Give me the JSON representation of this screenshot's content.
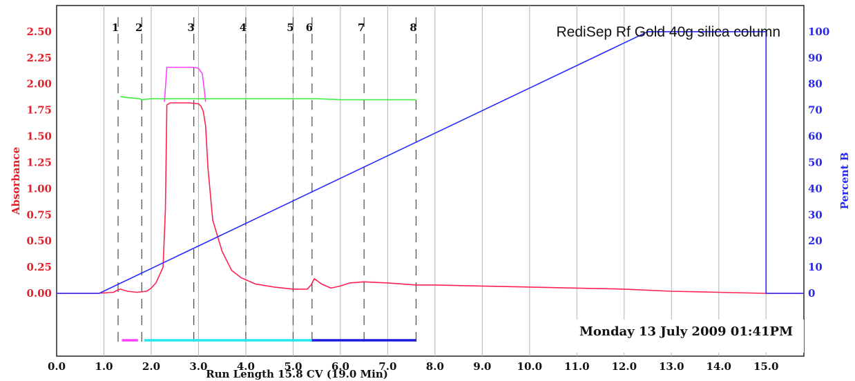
{
  "chart_data": {
    "type": "line",
    "title": "RediSep Rf Gold 40g silica column",
    "timestamp": "Monday 13 July 2009 01:41PM",
    "xlabel": "Run Length 15.8 CV (19.0 Min)",
    "ylabel_left": "Absorbance",
    "ylabel_right": "Percent B",
    "xlim": [
      0.0,
      15.8
    ],
    "ylim_left": [
      -0.6,
      2.75
    ],
    "ylim_right": [
      -24,
      110
    ],
    "x_ticks": [
      "0.0",
      "1.0",
      "2.0",
      "3.0",
      "4.0",
      "5.0",
      "6.0",
      "7.0",
      "8.0",
      "9.0",
      "10.0",
      "11.0",
      "12.0",
      "13.0",
      "14.0",
      "15.0"
    ],
    "y_left_ticks": [
      "0.00",
      "0.25",
      "0.50",
      "0.75",
      "1.00",
      "1.25",
      "1.50",
      "1.75",
      "2.00",
      "2.25",
      "2.50"
    ],
    "y_right_ticks": [
      "0",
      "10",
      "20",
      "30",
      "40",
      "50",
      "60",
      "70",
      "80",
      "90",
      "100"
    ],
    "grid": true,
    "colors": {
      "absorbance_left": "#e0202a",
      "percent_b": "#2a2aee",
      "grid": "#b4b4b4",
      "red_trace": "#ff2050",
      "magenta_trace": "#ff40ff",
      "green_trace": "#33ee33",
      "blue_trace": "#2a2aff",
      "cyan_bar": "#22e8f0",
      "navy_bar": "#1a1ae0"
    },
    "fractions": [
      {
        "label": "1",
        "x": 1.3
      },
      {
        "label": "2",
        "x": 1.8
      },
      {
        "label": "3",
        "x": 2.9
      },
      {
        "label": "4",
        "x": 4.0
      },
      {
        "label": "5",
        "x": 5.0
      },
      {
        "label": "6",
        "x": 5.4
      },
      {
        "label": "7",
        "x": 6.5
      },
      {
        "label": "8",
        "x": 7.6
      }
    ],
    "series": [
      {
        "axis": "left",
        "color_key": "red_trace",
        "x": [
          0.0,
          0.85,
          1.2,
          1.28,
          1.35,
          1.5,
          1.7,
          1.9,
          2.0,
          2.1,
          2.2,
          2.25,
          2.3,
          2.33,
          2.4,
          2.6,
          2.8,
          3.0,
          3.05,
          3.1,
          3.15,
          3.2,
          3.3,
          3.5,
          3.7,
          3.9,
          4.2,
          4.6,
          5.0,
          5.3,
          5.38,
          5.45,
          5.6,
          5.8,
          6.0,
          6.2,
          6.5,
          7.0,
          7.6,
          8.0,
          9.0,
          10.0,
          11.0,
          12.0,
          13.0,
          14.0,
          15.0,
          15.8
        ],
        "y": [
          0.0,
          0.0,
          0.01,
          0.03,
          0.04,
          0.02,
          0.01,
          0.02,
          0.05,
          0.1,
          0.2,
          0.25,
          0.8,
          1.8,
          1.82,
          1.82,
          1.82,
          1.81,
          1.79,
          1.74,
          1.6,
          1.2,
          0.7,
          0.4,
          0.22,
          0.15,
          0.09,
          0.06,
          0.04,
          0.04,
          0.08,
          0.14,
          0.09,
          0.05,
          0.07,
          0.1,
          0.11,
          0.1,
          0.08,
          0.08,
          0.07,
          0.06,
          0.05,
          0.04,
          0.02,
          0.01,
          0.0,
          0.0
        ]
      },
      {
        "axis": "left",
        "color_key": "magenta_trace",
        "x": [
          2.28,
          2.33,
          2.6,
          2.9,
          3.0,
          3.08,
          3.12,
          3.15
        ],
        "y": [
          1.83,
          2.16,
          2.16,
          2.16,
          2.15,
          2.1,
          1.95,
          1.83
        ]
      },
      {
        "axis": "left",
        "color_key": "green_trace",
        "x": [
          1.35,
          1.5,
          1.75,
          1.8,
          2.0,
          3.0,
          4.0,
          5.0,
          5.5,
          6.0,
          7.0,
          7.6
        ],
        "y": [
          1.88,
          1.87,
          1.86,
          1.85,
          1.86,
          1.86,
          1.86,
          1.86,
          1.86,
          1.85,
          1.85,
          1.85
        ]
      },
      {
        "axis": "right",
        "color_key": "blue_trace",
        "x": [
          0.0,
          0.9,
          12.5,
          15.0,
          15.0,
          15.8
        ],
        "y": [
          0,
          0,
          100,
          100,
          0,
          0
        ]
      }
    ],
    "fraction_bars": [
      {
        "x": [
          1.38,
          1.72
        ],
        "color_key": "magenta_trace"
      },
      {
        "x": [
          1.85,
          5.4
        ],
        "color_key": "cyan_bar"
      },
      {
        "x": [
          5.4,
          7.6
        ],
        "color_key": "navy_bar"
      }
    ]
  }
}
